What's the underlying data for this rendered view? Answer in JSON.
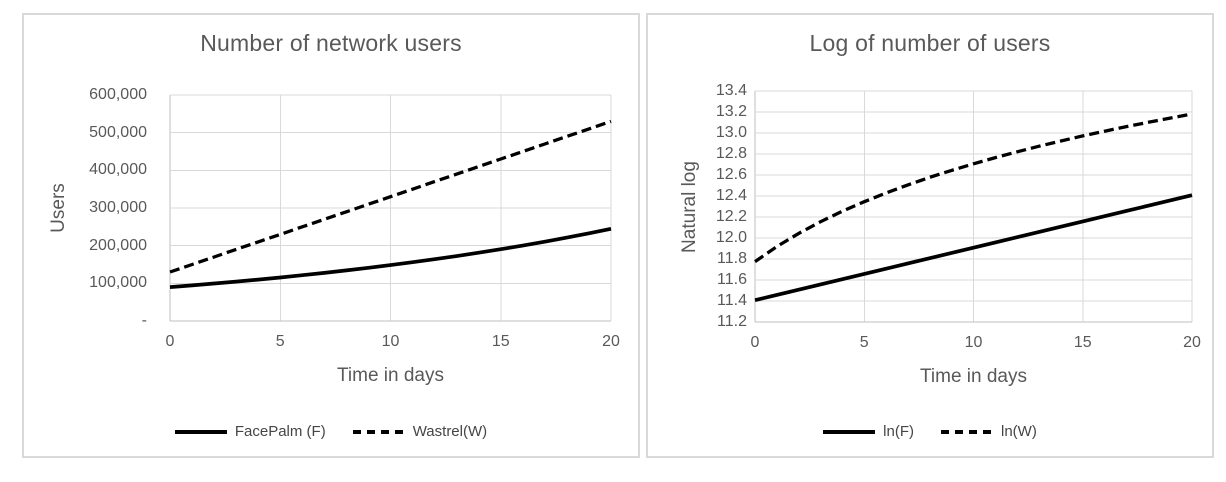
{
  "colors": {
    "background": "#ffffff",
    "panel_border": "#d9d9d9",
    "grid_line": "#d9d9d9",
    "axis_line": "#bfbfbf",
    "text": "#595959",
    "legend_text": "#454545",
    "series_line": "#000000"
  },
  "chart_data": [
    {
      "type": "line",
      "title": "Number of network users",
      "xlabel": "Time in days",
      "ylabel": "Users",
      "xlim": [
        0,
        20
      ],
      "ylim": [
        0,
        600000
      ],
      "x_tick_labels": [
        "0",
        "5",
        "10",
        "15",
        "20"
      ],
      "y_tick_labels": [
        "600,000",
        "500,000",
        "400,000",
        "300,000",
        "200,000",
        "100,000",
        "-"
      ],
      "grid": true,
      "legend_position": "bottom",
      "series": [
        {
          "name": "FacePalm (F)",
          "line_style": "solid",
          "color": "#000000",
          "x": [
            0,
            1,
            2,
            3,
            4,
            5,
            6,
            7,
            8,
            9,
            10,
            11,
            12,
            13,
            14,
            15,
            16,
            17,
            18,
            19,
            20
          ],
          "values": [
            90000,
            94614,
            99465,
            104565,
            109926,
            115562,
            121487,
            127716,
            134264,
            141148,
            148385,
            155992,
            163990,
            172398,
            181238,
            190530,
            200299,
            210569,
            221365,
            232716,
            244648
          ]
        },
        {
          "name": "Wastrel(W)",
          "line_style": "dashed",
          "color": "#000000",
          "x": [
            0,
            1,
            2,
            3,
            4,
            5,
            6,
            7,
            8,
            9,
            10,
            11,
            12,
            13,
            14,
            15,
            16,
            17,
            18,
            19,
            20
          ],
          "values": [
            130000,
            150000,
            170000,
            190000,
            210000,
            230000,
            250000,
            270000,
            290000,
            310000,
            330000,
            350000,
            370000,
            390000,
            410000,
            430000,
            450000,
            470000,
            490000,
            510000,
            530000
          ]
        }
      ]
    },
    {
      "type": "line",
      "title": "Log of number of users",
      "xlabel": "Time in days",
      "ylabel": "Natural log",
      "xlim": [
        0,
        20
      ],
      "ylim": [
        11.2,
        13.4
      ],
      "x_tick_labels": [
        "0",
        "5",
        "10",
        "15",
        "20"
      ],
      "y_tick_labels": [
        "13.4",
        "13.2",
        "13.0",
        "12.8",
        "12.6",
        "12.4",
        "12.2",
        "12.0",
        "11.8",
        "11.6",
        "11.4",
        "11.2"
      ],
      "grid": true,
      "legend_position": "bottom",
      "series": [
        {
          "name": "ln(F)",
          "line_style": "solid",
          "color": "#000000",
          "x": [
            0,
            1,
            2,
            3,
            4,
            5,
            6,
            7,
            8,
            9,
            10,
            11,
            12,
            13,
            14,
            15,
            16,
            17,
            18,
            19,
            20
          ],
          "values": [
            11.408,
            11.458,
            11.508,
            11.558,
            11.608,
            11.658,
            11.708,
            11.758,
            11.808,
            11.858,
            11.908,
            11.958,
            12.008,
            12.058,
            12.108,
            12.158,
            12.208,
            12.258,
            12.308,
            12.358,
            12.408
          ]
        },
        {
          "name": "ln(W)",
          "line_style": "dashed",
          "color": "#000000",
          "x": [
            0,
            1,
            2,
            3,
            4,
            5,
            6,
            7,
            8,
            9,
            10,
            11,
            12,
            13,
            14,
            15,
            16,
            17,
            18,
            19,
            20
          ],
          "values": [
            11.775,
            11.918,
            12.044,
            12.155,
            12.255,
            12.346,
            12.429,
            12.506,
            12.578,
            12.644,
            12.707,
            12.766,
            12.821,
            12.874,
            12.924,
            12.972,
            13.017,
            13.061,
            13.102,
            13.142,
            13.181
          ]
        }
      ]
    }
  ]
}
